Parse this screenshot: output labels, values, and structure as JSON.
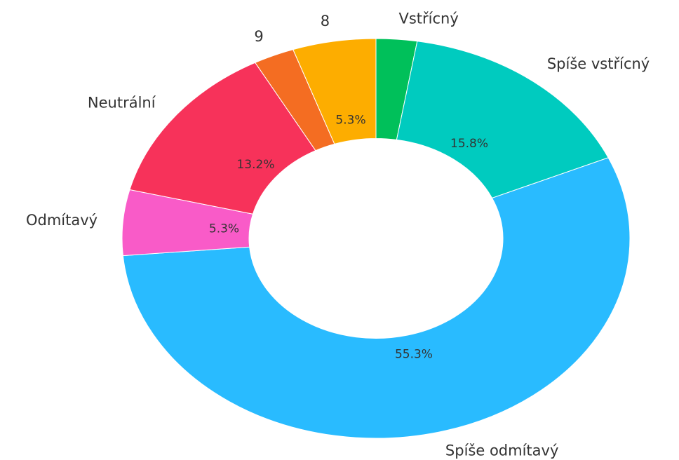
{
  "chart_data": {
    "type": "pie",
    "categories": [
      "Vstřícný",
      "Spíše vstřícný",
      "Spíše odmítavý",
      "Odmítavý",
      "Neutrální",
      "9",
      "8"
    ],
    "values": [
      2.6,
      15.8,
      55.3,
      5.3,
      13.2,
      2.6,
      5.3
    ],
    "value_labels": [
      null,
      "15.8%",
      "55.3%",
      "5.3%",
      "13.2%",
      null,
      "5.3%"
    ],
    "colors": [
      "#00c05a",
      "#00cbbf",
      "#29bbff",
      "#f95bc8",
      "#f7325a",
      "#f46d22",
      "#fdad00"
    ],
    "donut": true
  }
}
